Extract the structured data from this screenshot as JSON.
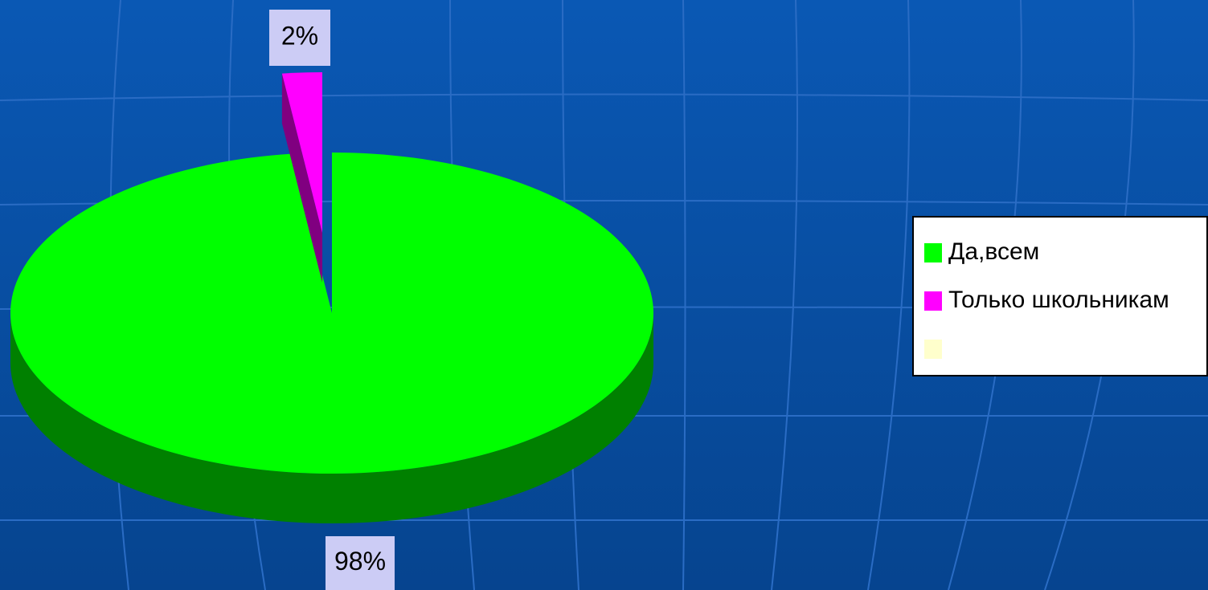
{
  "chart_data": {
    "type": "pie",
    "categories": [
      "Да,всем",
      "Только школьникам",
      null
    ],
    "values": [
      98,
      2,
      0
    ],
    "value_labels": [
      "98%",
      "2%",
      null
    ],
    "colors": [
      "#00ff00",
      "#ff00ff",
      "#ffffcc"
    ],
    "legend": "right"
  }
}
